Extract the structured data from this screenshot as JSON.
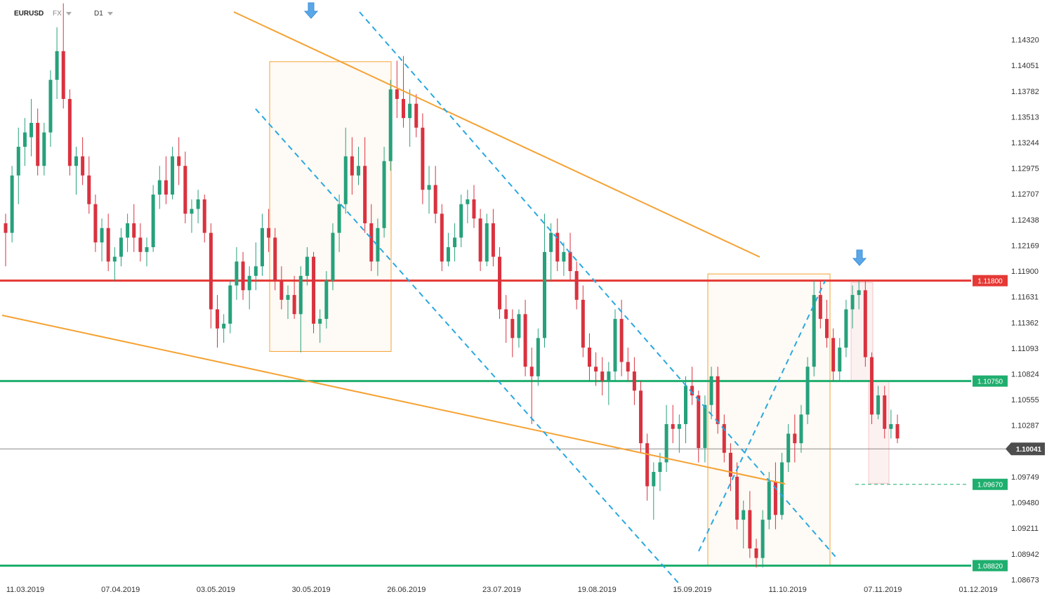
{
  "header": {
    "symbol": "EURUSD",
    "market": "FX",
    "timeframe": "D1"
  },
  "colors": {
    "bull": "#26a17b",
    "bear": "#d9323f",
    "resistance": "#e53935",
    "support": "#1fae6e",
    "trend": "#f5a233",
    "channel": "#29a8e0",
    "current_price": "#8a8a8a",
    "price_label_current": "#4d4d4d"
  },
  "chart_data": {
    "type": "candlestick",
    "symbol": "EURUSD",
    "timeframe": "D1",
    "y_axis": {
      "ticks": [
        1.1432,
        1.14051,
        1.13782,
        1.13513,
        1.13244,
        1.12975,
        1.12707,
        1.12438,
        1.12169,
        1.119,
        1.11631,
        1.11362,
        1.11093,
        1.10824,
        1.10555,
        1.10287,
        1.10018,
        1.09749,
        1.0948,
        1.09211,
        1.08942,
        1.08673
      ],
      "tick_labels": [
        "1.14320",
        "1.14051",
        "1.13782",
        "1.13513",
        "1.13244",
        "1.12975",
        "1.12707",
        "1.12438",
        "1.12169",
        "1.11900",
        "1.11631",
        "1.11362",
        "1.11093",
        "1.10824",
        "1.10555",
        "1.10287",
        "1.10018",
        "1.09749",
        "1.09480",
        "1.09211",
        "1.08942",
        "1.08673"
      ],
      "range": [
        1.0862,
        1.1472
      ]
    },
    "x_axis": {
      "tick_labels": [
        "11.03.2019",
        "07.04.2019",
        "03.05.2019",
        "30.05.2019",
        "26.06.2019",
        "23.07.2019",
        "19.08.2019",
        "15.09.2019",
        "11.10.2019",
        "07.11.2019",
        "01.12.2019"
      ]
    },
    "levels": [
      {
        "role": "resistance",
        "price": 1.118,
        "label": "1.11800"
      },
      {
        "role": "support",
        "price": 1.1075,
        "label": "1.10750"
      },
      {
        "role": "support",
        "price": 1.0882,
        "label": "1.08820"
      },
      {
        "role": "target",
        "price": 1.0967,
        "label": "1.09670"
      }
    ],
    "current_price": {
      "price": 1.10041,
      "label": "1.10041"
    },
    "ohlc_seed": [
      [
        1.124,
        1.125,
        1.1195,
        1.123
      ],
      [
        1.123,
        1.13,
        1.122,
        1.129
      ],
      [
        1.129,
        1.134,
        1.126,
        1.132
      ],
      [
        1.132,
        1.135,
        1.13,
        1.1335
      ],
      [
        1.133,
        1.137,
        1.131,
        1.1345
      ],
      [
        1.1345,
        1.136,
        1.129,
        1.13
      ],
      [
        1.13,
        1.1345,
        1.129,
        1.1335
      ],
      [
        1.1335,
        1.14,
        1.132,
        1.139
      ],
      [
        1.139,
        1.1445,
        1.137,
        1.142
      ],
      [
        1.142,
        1.147,
        1.136,
        1.137
      ],
      [
        1.137,
        1.138,
        1.129,
        1.13
      ],
      [
        1.13,
        1.132,
        1.127,
        1.131
      ],
      [
        1.131,
        1.133,
        1.128,
        1.129
      ],
      [
        1.129,
        1.131,
        1.125,
        1.126
      ],
      [
        1.126,
        1.127,
        1.121,
        1.122
      ],
      [
        1.122,
        1.1245,
        1.12,
        1.1235
      ],
      [
        1.1235,
        1.125,
        1.119,
        1.12
      ],
      [
        1.12,
        1.1215,
        1.118,
        1.1205
      ],
      [
        1.1205,
        1.1235,
        1.1195,
        1.1225
      ],
      [
        1.1225,
        1.125,
        1.121,
        1.124
      ],
      [
        1.124,
        1.126,
        1.121,
        1.1225
      ],
      [
        1.1225,
        1.124,
        1.12,
        1.121
      ],
      [
        1.121,
        1.1225,
        1.1195,
        1.1215
      ],
      [
        1.1215,
        1.128,
        1.121,
        1.127
      ],
      [
        1.127,
        1.13,
        1.1255,
        1.1285
      ],
      [
        1.1285,
        1.131,
        1.126,
        1.127
      ],
      [
        1.127,
        1.132,
        1.1265,
        1.131
      ],
      [
        1.131,
        1.133,
        1.128,
        1.13
      ],
      [
        1.13,
        1.1315,
        1.124,
        1.125
      ],
      [
        1.125,
        1.1265,
        1.123,
        1.1255
      ],
      [
        1.1255,
        1.1275,
        1.124,
        1.1265
      ],
      [
        1.1265,
        1.127,
        1.122,
        1.123
      ],
      [
        1.123,
        1.124,
        1.113,
        1.115
      ],
      [
        1.115,
        1.1165,
        1.111,
        1.113
      ],
      [
        1.113,
        1.1145,
        1.1115,
        1.1135
      ],
      [
        1.1135,
        1.118,
        1.1125,
        1.1175
      ],
      [
        1.1175,
        1.1215,
        1.116,
        1.12
      ],
      [
        1.12,
        1.121,
        1.116,
        1.117
      ],
      [
        1.117,
        1.1195,
        1.115,
        1.1185
      ],
      [
        1.1185,
        1.122,
        1.117,
        1.1195
      ],
      [
        1.1195,
        1.125,
        1.1185,
        1.1235
      ],
      [
        1.1235,
        1.1255,
        1.121,
        1.1225
      ],
      [
        1.1225,
        1.1235,
        1.117,
        1.118
      ],
      [
        1.118,
        1.1195,
        1.115,
        1.116
      ],
      [
        1.116,
        1.1175,
        1.114,
        1.1165
      ],
      [
        1.1165,
        1.1185,
        1.114,
        1.1145
      ],
      [
        1.1145,
        1.1195,
        1.1105,
        1.1185
      ],
      [
        1.1185,
        1.1215,
        1.1175,
        1.1205
      ],
      [
        1.1205,
        1.121,
        1.1125,
        1.1135
      ],
      [
        1.1135,
        1.115,
        1.1115,
        1.114
      ],
      [
        1.114,
        1.119,
        1.113,
        1.118
      ],
      [
        1.118,
        1.124,
        1.117,
        1.123
      ],
      [
        1.123,
        1.127,
        1.121,
        1.126
      ],
      [
        1.126,
        1.134,
        1.125,
        1.131
      ],
      [
        1.131,
        1.133,
        1.127,
        1.129
      ],
      [
        1.129,
        1.132,
        1.128,
        1.13
      ],
      [
        1.13,
        1.133,
        1.123,
        1.124
      ],
      [
        1.124,
        1.126,
        1.119,
        1.12
      ],
      [
        1.12,
        1.1245,
        1.1185,
        1.1235
      ],
      [
        1.1235,
        1.132,
        1.1225,
        1.1305
      ],
      [
        1.1305,
        1.139,
        1.1295,
        1.138
      ],
      [
        1.138,
        1.141,
        1.135,
        1.137
      ],
      [
        1.137,
        1.1415,
        1.134,
        1.135
      ],
      [
        1.135,
        1.138,
        1.132,
        1.1365
      ],
      [
        1.1365,
        1.1375,
        1.133,
        1.134
      ],
      [
        1.134,
        1.1355,
        1.126,
        1.1275
      ],
      [
        1.1275,
        1.13,
        1.125,
        1.128
      ],
      [
        1.128,
        1.13,
        1.124,
        1.125
      ],
      [
        1.125,
        1.126,
        1.119,
        1.12
      ],
      [
        1.12,
        1.123,
        1.1195,
        1.1215
      ],
      [
        1.1215,
        1.124,
        1.12,
        1.1225
      ],
      [
        1.1225,
        1.127,
        1.1215,
        1.126
      ],
      [
        1.126,
        1.1275,
        1.124,
        1.1265
      ],
      [
        1.1265,
        1.128,
        1.1235,
        1.1245
      ],
      [
        1.1245,
        1.1255,
        1.119,
        1.12
      ],
      [
        1.12,
        1.125,
        1.1195,
        1.124
      ],
      [
        1.124,
        1.1255,
        1.1195,
        1.1205
      ],
      [
        1.1205,
        1.1215,
        1.114,
        1.115
      ],
      [
        1.115,
        1.1165,
        1.1115,
        1.114
      ],
      [
        1.114,
        1.115,
        1.11,
        1.112
      ],
      [
        1.112,
        1.115,
        1.111,
        1.1145
      ],
      [
        1.1145,
        1.116,
        1.108,
        1.109
      ],
      [
        1.109,
        1.111,
        1.103,
        1.108
      ],
      [
        1.108,
        1.113,
        1.107,
        1.112
      ],
      [
        1.112,
        1.125,
        1.111,
        1.121
      ],
      [
        1.121,
        1.124,
        1.118,
        1.123
      ],
      [
        1.123,
        1.1245,
        1.119,
        1.12
      ],
      [
        1.12,
        1.122,
        1.1185,
        1.121
      ],
      [
        1.121,
        1.123,
        1.118,
        1.119
      ],
      [
        1.119,
        1.12,
        1.115,
        1.116
      ],
      [
        1.116,
        1.1175,
        1.11,
        1.111
      ],
      [
        1.111,
        1.1125,
        1.1075,
        1.109
      ],
      [
        1.109,
        1.1105,
        1.107,
        1.1085
      ],
      [
        1.1085,
        1.11,
        1.106,
        1.1075
      ],
      [
        1.1075,
        1.1095,
        1.105,
        1.1085
      ],
      [
        1.1085,
        1.115,
        1.1075,
        1.114
      ],
      [
        1.114,
        1.116,
        1.108,
        1.1095
      ],
      [
        1.1095,
        1.111,
        1.1075,
        1.1085
      ],
      [
        1.1085,
        1.11,
        1.105,
        1.1065
      ],
      [
        1.1065,
        1.1075,
        1.1,
        1.101
      ],
      [
        1.101,
        1.102,
        1.095,
        1.0965
      ],
      [
        1.0965,
        1.099,
        1.093,
        1.098
      ],
      [
        1.098,
        1.1,
        1.096,
        1.099
      ],
      [
        1.099,
        1.105,
        1.098,
        1.103
      ],
      [
        1.103,
        1.105,
        1.101,
        1.1025
      ],
      [
        1.1025,
        1.104,
        1.1,
        1.103
      ],
      [
        1.103,
        1.108,
        1.101,
        1.107
      ],
      [
        1.107,
        1.109,
        1.105,
        1.106
      ],
      [
        1.106,
        1.1065,
        1.099,
        1.1005
      ],
      [
        1.1005,
        1.106,
        1.099,
        1.105
      ],
      [
        1.105,
        1.109,
        1.1035,
        1.108
      ],
      [
        1.108,
        1.109,
        1.102,
        1.103
      ],
      [
        1.103,
        1.104,
        1.099,
        1.1
      ],
      [
        1.1,
        1.101,
        1.096,
        1.0975
      ],
      [
        1.0975,
        1.099,
        1.092,
        1.093
      ],
      [
        1.093,
        1.095,
        1.09,
        1.094
      ],
      [
        1.094,
        1.096,
        1.089,
        1.09
      ],
      [
        1.09,
        1.091,
        1.088,
        1.089
      ],
      [
        1.089,
        1.094,
        1.088,
        1.093
      ],
      [
        1.093,
        1.098,
        1.092,
        1.097
      ],
      [
        1.097,
        1.099,
        1.092,
        1.0935
      ],
      [
        1.0935,
        1.1,
        1.093,
        1.099
      ],
      [
        1.099,
        1.103,
        1.098,
        1.102
      ],
      [
        1.102,
        1.104,
        1.099,
        1.101
      ],
      [
        1.101,
        1.105,
        1.1,
        1.104
      ],
      [
        1.104,
        1.11,
        1.103,
        1.109
      ],
      [
        1.109,
        1.118,
        1.108,
        1.1165
      ],
      [
        1.1165,
        1.118,
        1.113,
        1.114
      ],
      [
        1.114,
        1.116,
        1.111,
        1.112
      ],
      [
        1.112,
        1.113,
        1.1075,
        1.1085
      ],
      [
        1.1085,
        1.112,
        1.1075,
        1.111
      ],
      [
        1.111,
        1.116,
        1.11,
        1.115
      ],
      [
        1.115,
        1.1175,
        1.113,
        1.1165
      ],
      [
        1.1165,
        1.118,
        1.115,
        1.117
      ],
      [
        1.117,
        1.118,
        1.109,
        1.11
      ],
      [
        1.11,
        1.1105,
        1.103,
        1.104
      ],
      [
        1.104,
        1.107,
        1.1035,
        1.106
      ],
      [
        1.106,
        1.107,
        1.1015,
        1.1025
      ],
      [
        1.1025,
        1.1045,
        1.1015,
        1.103
      ],
      [
        1.103,
        1.104,
        1.101,
        1.1015
      ]
    ],
    "annotations": {
      "arrows": [
        "down",
        "down"
      ],
      "trendlines": 4,
      "rectangles": 4
    }
  }
}
